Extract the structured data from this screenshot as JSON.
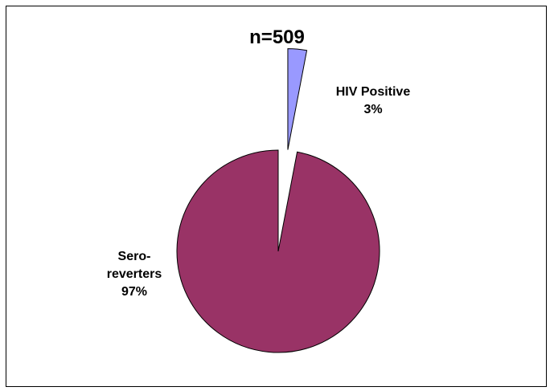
{
  "chart_data": {
    "type": "pie",
    "title": "n=509",
    "slices": [
      {
        "label_lines": [
          "HIV Positive",
          "3%"
        ],
        "value": 3,
        "color": "#9999ff",
        "exploded": true
      },
      {
        "label_lines": [
          "Sero-",
          "reverters",
          "97%"
        ],
        "value": 97,
        "color": "#993366",
        "exploded": false
      }
    ],
    "legend": "none"
  }
}
